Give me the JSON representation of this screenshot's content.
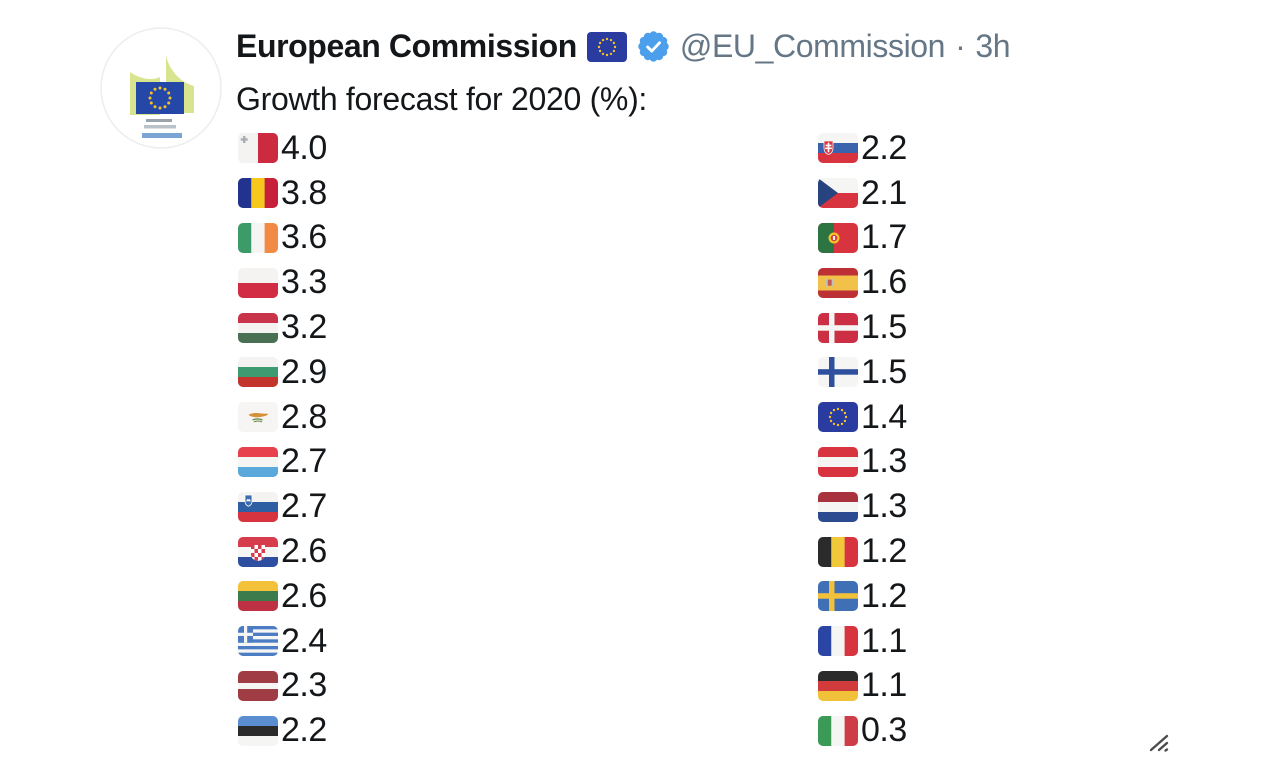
{
  "header": {
    "name": "European Commission",
    "handle": "@EU_Commission",
    "separator": "·",
    "time": "3h"
  },
  "tweet": {
    "text": "Growth forecast for 2020 (%):"
  },
  "forecast": {
    "left": [
      {
        "country": "Malta",
        "code": "mt",
        "value": "4.0"
      },
      {
        "country": "Romania",
        "code": "ro",
        "value": "3.8"
      },
      {
        "country": "Ireland",
        "code": "ie",
        "value": "3.6"
      },
      {
        "country": "Poland",
        "code": "pl",
        "value": "3.3"
      },
      {
        "country": "Hungary",
        "code": "hu",
        "value": "3.2"
      },
      {
        "country": "Bulgaria",
        "code": "bg",
        "value": "2.9"
      },
      {
        "country": "Cyprus",
        "code": "cy",
        "value": "2.8"
      },
      {
        "country": "Luxembourg",
        "code": "lu",
        "value": "2.7"
      },
      {
        "country": "Slovenia",
        "code": "si",
        "value": "2.7"
      },
      {
        "country": "Croatia",
        "code": "hr",
        "value": "2.6"
      },
      {
        "country": "Lithuania",
        "code": "lt",
        "value": "2.6"
      },
      {
        "country": "Greece",
        "code": "gr",
        "value": "2.4"
      },
      {
        "country": "Latvia",
        "code": "lv",
        "value": "2.3"
      },
      {
        "country": "Estonia",
        "code": "ee",
        "value": "2.2"
      }
    ],
    "right": [
      {
        "country": "Slovakia",
        "code": "sk",
        "value": "2.2"
      },
      {
        "country": "Czechia",
        "code": "cz",
        "value": "2.1"
      },
      {
        "country": "Portugal",
        "code": "pt",
        "value": "1.7"
      },
      {
        "country": "Spain",
        "code": "es",
        "value": "1.6"
      },
      {
        "country": "Denmark",
        "code": "dk",
        "value": "1.5"
      },
      {
        "country": "Finland",
        "code": "fi",
        "value": "1.5"
      },
      {
        "country": "European Union",
        "code": "eu",
        "value": "1.4"
      },
      {
        "country": "Austria",
        "code": "at",
        "value": "1.3"
      },
      {
        "country": "Netherlands",
        "code": "nl",
        "value": "1.3"
      },
      {
        "country": "Belgium",
        "code": "be",
        "value": "1.2"
      },
      {
        "country": "Sweden",
        "code": "se",
        "value": "1.2"
      },
      {
        "country": "France",
        "code": "fr",
        "value": "1.1"
      },
      {
        "country": "Germany",
        "code": "de",
        "value": "1.1"
      },
      {
        "country": "Italy",
        "code": "it",
        "value": "0.3"
      }
    ]
  },
  "colors": {
    "verified_blue": "#4C9FEB",
    "handle_grey": "#657786",
    "text": "#14171A",
    "eu_blue": "#2A3C9F",
    "eu_star_yellow": "#F4C327"
  },
  "icons": {
    "avatar": "european-commission-logo",
    "header_flag": "eu-flag-icon",
    "badge": "verified-badge-icon",
    "corner": "resize-handle-icon"
  }
}
